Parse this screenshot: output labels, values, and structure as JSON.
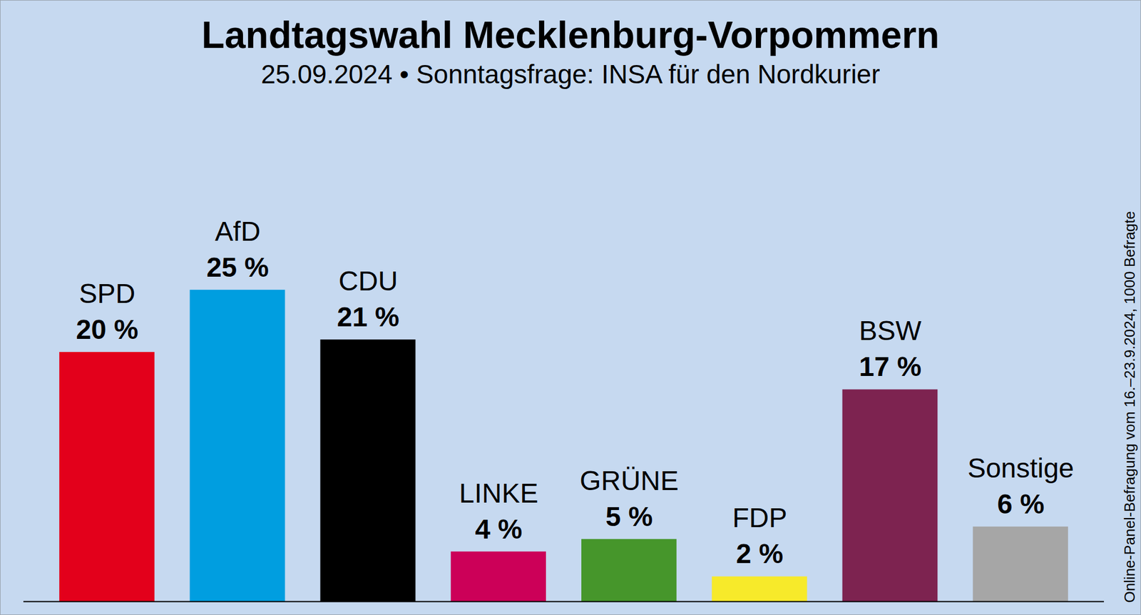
{
  "chart_data": {
    "type": "bar",
    "title": "Landtagswahl Mecklenburg-Vorpommern",
    "subtitle": "25.09.2024 • Sonntagsfrage: INSA für den Nordkurier",
    "caption": "Online-Panel-Befragung vom 16.–23.9.2024, 1000 Befragte",
    "categories": [
      "SPD",
      "AfD",
      "CDU",
      "LINKE",
      "GRÜNE",
      "FDP",
      "BSW",
      "Sonstige"
    ],
    "values": [
      20,
      25,
      21,
      4,
      5,
      2,
      17,
      6
    ],
    "value_labels": [
      "20 %",
      "25 %",
      "21 %",
      "4 %",
      "5 %",
      "2 %",
      "17 %",
      "6 %"
    ],
    "colors": [
      "#e3001b",
      "#009ee0",
      "#000000",
      "#cc0058",
      "#46962b",
      "#f7ea2a",
      "#7d2350",
      "#a6a6a6"
    ],
    "ylim": [
      0,
      25
    ],
    "data_labels": true,
    "tick_labels": false
  }
}
